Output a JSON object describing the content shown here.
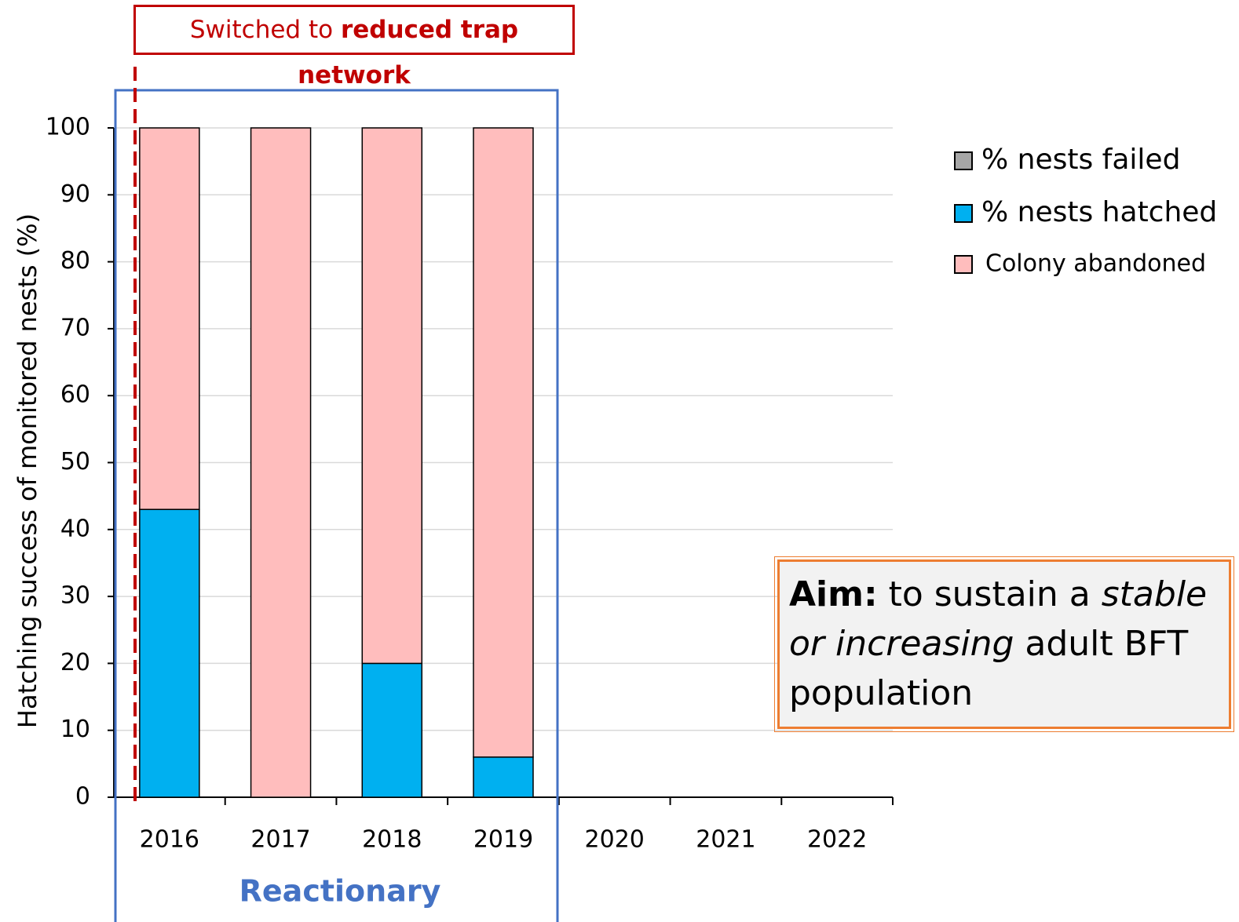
{
  "chart_data": {
    "type": "stacked_bar",
    "y_label": "Hatching success of monitored nests (%)",
    "categories": [
      "2016",
      "2017",
      "2018",
      "2019",
      "2020",
      "2021",
      "2022"
    ],
    "series": [
      {
        "name": "% nests failed",
        "color": "#a6a6a6",
        "values": [
          0,
          0,
          0,
          0,
          null,
          null,
          null
        ]
      },
      {
        "name": "% nests hatched",
        "color": "#00b0f0",
        "values": [
          43,
          0,
          20,
          6,
          null,
          null,
          null
        ]
      },
      {
        "name": "Colony abandoned",
        "color": "#ffbdbd",
        "values": [
          57,
          100,
          80,
          94,
          null,
          null,
          null
        ]
      }
    ],
    "ylim": [
      0,
      100
    ],
    "yticks": [
      0,
      10,
      20,
      30,
      40,
      50,
      60,
      70,
      80,
      90,
      100
    ],
    "grid": true,
    "period_label": "Reactionary",
    "switch_note": {
      "text": "Switched to",
      "bold": "reduced trap network"
    },
    "aim": {
      "lead": "Aim:",
      "t1": "to sustain a",
      "i1": "stable",
      "i2": "or increasing",
      "t2": "adult BFT",
      "t3": "population"
    }
  }
}
